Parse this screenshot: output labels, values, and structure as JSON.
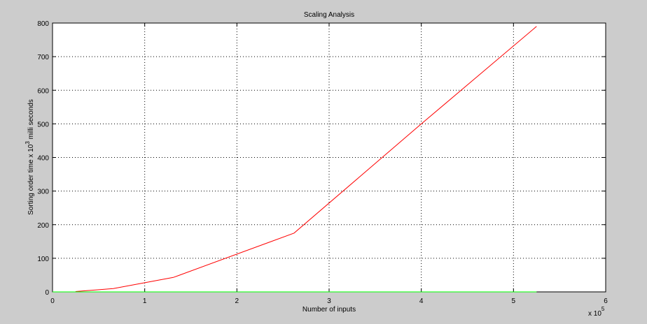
{
  "chart_data": {
    "type": "line",
    "title": "Scaling Analysis",
    "xlabel": "Number of inputs",
    "ylabel_main": "Sorting order time x 10",
    "ylabel_exp": "3",
    "ylabel_suffix": " milli seconds",
    "x_multiplier_base": "x 10",
    "x_multiplier_exp": "5",
    "xlim": [
      0,
      6
    ],
    "ylim": [
      0,
      800
    ],
    "x_ticks": [
      0,
      1,
      2,
      3,
      4,
      5,
      6
    ],
    "y_ticks": [
      0,
      100,
      200,
      300,
      400,
      500,
      600,
      700,
      800
    ],
    "grid": true,
    "series": [
      {
        "color": "#ff0000",
        "x": [
          0.25,
          0.66,
          1.31,
          2.62,
          4.0,
          5.25
        ],
        "y": [
          1,
          10,
          43,
          175,
          500,
          790
        ]
      },
      {
        "color": "#00ff00",
        "x": [
          0.0,
          5.25
        ],
        "y": [
          0,
          0
        ]
      }
    ]
  }
}
